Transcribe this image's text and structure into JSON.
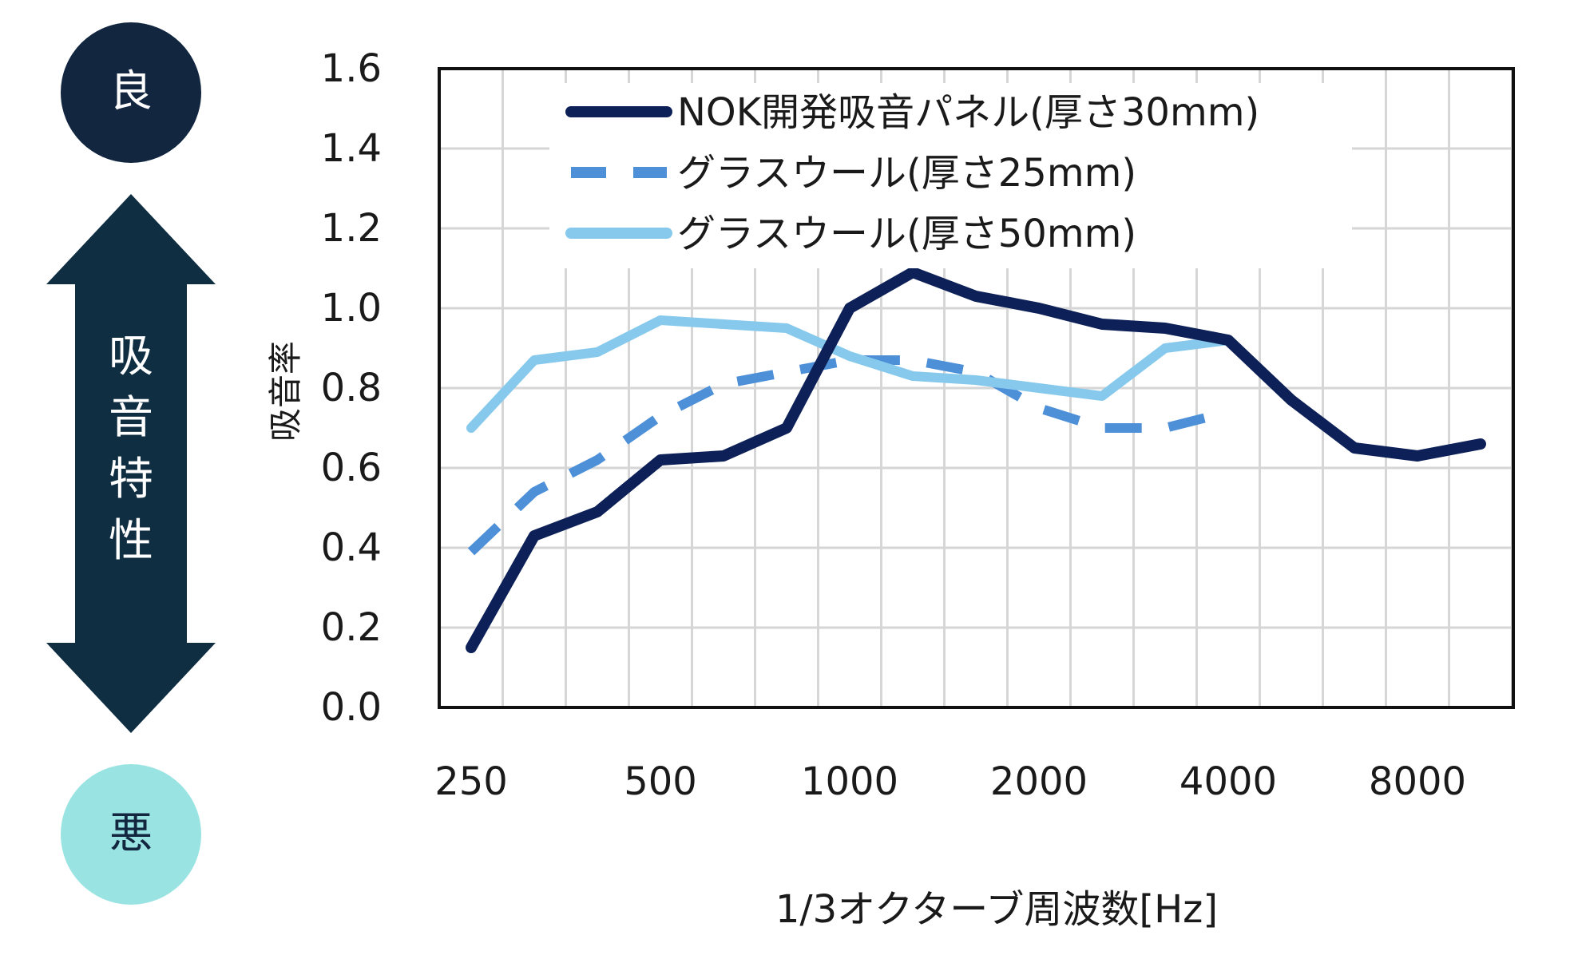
{
  "side_scale": {
    "good_label": "良",
    "bad_label": "悪",
    "axis_label_chars": [
      "吸",
      "音",
      "特",
      "性"
    ],
    "good_color": "#12263f",
    "bad_color": "#99e4e2",
    "arrow_color": "#0f2e42"
  },
  "chart_data": {
    "type": "line",
    "ylabel": "吸音率",
    "xlabel": "1/3オクターブ周波数[Hz]",
    "ylim": [
      0,
      1.6
    ],
    "yticks": [
      "0.0",
      "0.2",
      "0.4",
      "0.6",
      "0.8",
      "1.0",
      "1.2",
      "1.4",
      "1.6"
    ],
    "x": [
      250,
      315,
      400,
      500,
      630,
      800,
      1000,
      1250,
      1600,
      2000,
      2500,
      3150,
      4000,
      5000,
      6300,
      8000,
      10000
    ],
    "xtick_labels": [
      "250",
      "500",
      "1000",
      "2000",
      "4000",
      "8000"
    ],
    "xtick_positions": [
      0,
      3,
      6,
      9,
      12,
      15
    ],
    "grid": true,
    "legend_position": "top-left",
    "series": [
      {
        "name": "NOK開発吸音パネル(厚さ30mm)",
        "color": "#0d2158",
        "dash": "solid",
        "values": [
          0.15,
          0.43,
          0.49,
          0.62,
          0.63,
          0.7,
          1.0,
          1.09,
          1.03,
          1.0,
          0.96,
          0.95,
          0.92,
          0.77,
          0.65,
          0.63,
          0.66
        ]
      },
      {
        "name": "グラスウール(厚さ25mm)",
        "color": "#4d90d8",
        "dash": "dashed",
        "values": [
          0.39,
          0.54,
          0.62,
          0.73,
          0.81,
          0.84,
          0.87,
          0.87,
          0.84,
          0.75,
          0.7,
          0.7,
          0.74,
          null,
          null,
          null,
          null
        ]
      },
      {
        "name": "グラスウール(厚さ50mm)",
        "color": "#86c9ec",
        "dash": "solid",
        "values": [
          0.7,
          0.87,
          0.89,
          0.97,
          0.96,
          0.95,
          0.88,
          0.83,
          0.82,
          0.8,
          0.78,
          0.9,
          0.92,
          null,
          null,
          null,
          null
        ]
      }
    ]
  }
}
